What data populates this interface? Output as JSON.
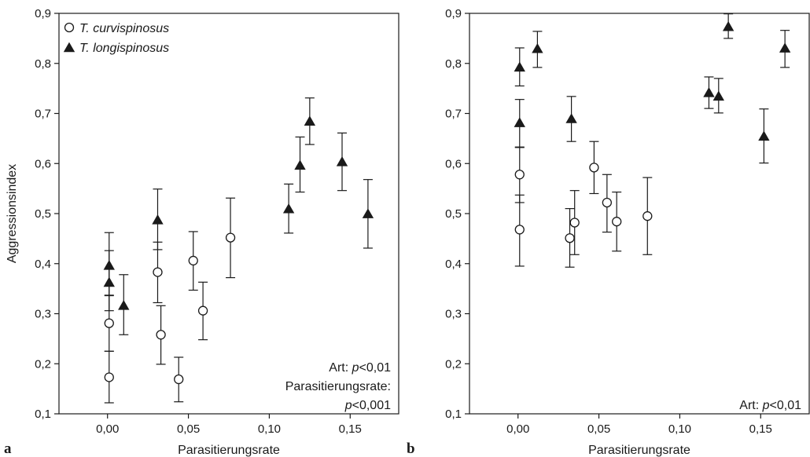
{
  "chart_data": [
    {
      "type": "scatter",
      "panel": "a",
      "xlabel": "Parasitierungsrate",
      "ylabel": "Aggressionsindex",
      "xlim": [
        -0.03,
        0.18
      ],
      "ylim": [
        0.1,
        0.9
      ],
      "xticks": [
        0.0,
        0.05,
        0.1,
        0.15
      ],
      "xtick_labels": [
        "0,00",
        "0,05",
        "0,10",
        "0,15"
      ],
      "yticks": [
        0.1,
        0.2,
        0.3,
        0.4,
        0.5,
        0.6,
        0.7,
        0.8,
        0.9
      ],
      "ytick_labels": [
        "0,1",
        "0,2",
        "0,3",
        "0,4",
        "0,5",
        "0,6",
        "0,7",
        "0,8",
        "0,9"
      ],
      "grid": false,
      "error_bars": true,
      "legend": {
        "placement": "top-left",
        "entries": [
          {
            "label": "T. curvispinosus",
            "marker": "open-circle"
          },
          {
            "label": "T. longispinosus",
            "marker": "filled-triangle"
          }
        ]
      },
      "annotation": [
        {
          "prefix": "Art: ",
          "italic": "p",
          "suffix": "<0,01"
        },
        {
          "prefix": "Parasitierungsrate:",
          "italic": "",
          "suffix": ""
        },
        {
          "prefix": "",
          "italic": "p",
          "suffix": "<0,001"
        }
      ],
      "series": [
        {
          "name": "T. curvispinosus",
          "marker": "open-circle",
          "points": [
            {
              "x": 0.001,
              "y": 0.173,
              "lo": 0.122,
              "hi": 0.225
            },
            {
              "x": 0.001,
              "y": 0.281,
              "lo": 0.225,
              "hi": 0.337
            },
            {
              "x": 0.031,
              "y": 0.383,
              "lo": 0.322,
              "hi": 0.443
            },
            {
              "x": 0.033,
              "y": 0.258,
              "lo": 0.199,
              "hi": 0.316
            },
            {
              "x": 0.044,
              "y": 0.169,
              "lo": 0.124,
              "hi": 0.213
            },
            {
              "x": 0.053,
              "y": 0.406,
              "lo": 0.347,
              "hi": 0.464
            },
            {
              "x": 0.059,
              "y": 0.306,
              "lo": 0.248,
              "hi": 0.363
            },
            {
              "x": 0.076,
              "y": 0.452,
              "lo": 0.372,
              "hi": 0.531
            }
          ]
        },
        {
          "name": "T. longispinosus",
          "marker": "filled-triangle",
          "points": [
            {
              "x": 0.001,
              "y": 0.396,
              "lo": 0.336,
              "hi": 0.462
            },
            {
              "x": 0.001,
              "y": 0.362,
              "lo": 0.306,
              "hi": 0.426
            },
            {
              "x": 0.01,
              "y": 0.316,
              "lo": 0.258,
              "hi": 0.378
            },
            {
              "x": 0.031,
              "y": 0.487,
              "lo": 0.428,
              "hi": 0.549
            },
            {
              "x": 0.112,
              "y": 0.509,
              "lo": 0.461,
              "hi": 0.559
            },
            {
              "x": 0.119,
              "y": 0.596,
              "lo": 0.543,
              "hi": 0.653
            },
            {
              "x": 0.125,
              "y": 0.684,
              "lo": 0.638,
              "hi": 0.731
            },
            {
              "x": 0.145,
              "y": 0.603,
              "lo": 0.546,
              "hi": 0.661
            },
            {
              "x": 0.161,
              "y": 0.499,
              "lo": 0.431,
              "hi": 0.568
            }
          ]
        }
      ]
    },
    {
      "type": "scatter",
      "panel": "b",
      "xlabel": "Parasitierungsrate",
      "ylabel": "",
      "xlim": [
        -0.03,
        0.18
      ],
      "ylim": [
        0.1,
        0.9
      ],
      "xticks": [
        0.0,
        0.05,
        0.1,
        0.15
      ],
      "xtick_labels": [
        "0,00",
        "0,05",
        "0,10",
        "0,15"
      ],
      "yticks": [
        0.1,
        0.2,
        0.3,
        0.4,
        0.5,
        0.6,
        0.7,
        0.8,
        0.9
      ],
      "ytick_labels": [
        "0,1",
        "0,2",
        "0,3",
        "0,4",
        "0,5",
        "0,6",
        "0,7",
        "0,8",
        "0,9"
      ],
      "grid": false,
      "error_bars": true,
      "legend": null,
      "annotation": [
        {
          "prefix": "Art: ",
          "italic": "p",
          "suffix": "<0,01"
        }
      ],
      "series": [
        {
          "name": "T. curvispinosus",
          "marker": "open-circle",
          "points": [
            {
              "x": 0.001,
              "y": 0.578,
              "lo": 0.522,
              "hi": 0.633
            },
            {
              "x": 0.001,
              "y": 0.468,
              "lo": 0.395,
              "hi": 0.537
            },
            {
              "x": 0.032,
              "y": 0.451,
              "lo": 0.393,
              "hi": 0.51
            },
            {
              "x": 0.035,
              "y": 0.482,
              "lo": 0.418,
              "hi": 0.546
            },
            {
              "x": 0.047,
              "y": 0.592,
              "lo": 0.54,
              "hi": 0.644
            },
            {
              "x": 0.055,
              "y": 0.522,
              "lo": 0.463,
              "hi": 0.578
            },
            {
              "x": 0.061,
              "y": 0.484,
              "lo": 0.425,
              "hi": 0.543
            },
            {
              "x": 0.08,
              "y": 0.495,
              "lo": 0.418,
              "hi": 0.572
            }
          ]
        },
        {
          "name": "T. longispinosus",
          "marker": "filled-triangle",
          "points": [
            {
              "x": 0.001,
              "y": 0.792,
              "lo": 0.755,
              "hi": 0.831
            },
            {
              "x": 0.001,
              "y": 0.681,
              "lo": 0.632,
              "hi": 0.728
            },
            {
              "x": 0.012,
              "y": 0.829,
              "lo": 0.792,
              "hi": 0.864
            },
            {
              "x": 0.033,
              "y": 0.689,
              "lo": 0.644,
              "hi": 0.734
            },
            {
              "x": 0.118,
              "y": 0.741,
              "lo": 0.71,
              "hi": 0.773
            },
            {
              "x": 0.124,
              "y": 0.734,
              "lo": 0.701,
              "hi": 0.77
            },
            {
              "x": 0.13,
              "y": 0.873,
              "lo": 0.85,
              "hi": 0.899
            },
            {
              "x": 0.152,
              "y": 0.654,
              "lo": 0.601,
              "hi": 0.709
            },
            {
              "x": 0.165,
              "y": 0.83,
              "lo": 0.792,
              "hi": 0.866
            }
          ]
        }
      ]
    }
  ]
}
